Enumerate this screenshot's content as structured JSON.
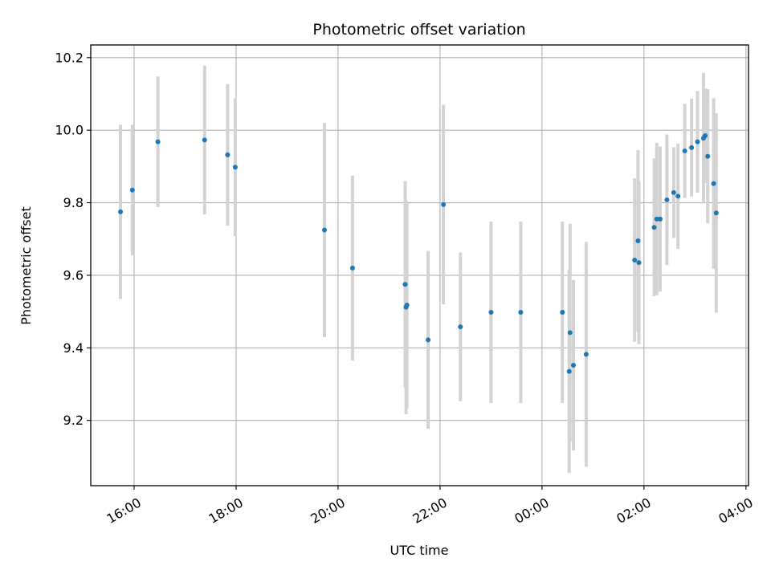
{
  "chart_data": {
    "type": "scatter",
    "title": "Photometric offset variation",
    "xlabel": "UTC time",
    "ylabel": "Photometric offset",
    "x_ticks": [
      "16:00",
      "18:00",
      "20:00",
      "22:00",
      "00:00",
      "02:00",
      "04:00"
    ],
    "y_ticks": [
      "9.2",
      "9.4",
      "9.6",
      "9.8",
      "10.0",
      "10.2"
    ],
    "xlim": [
      "15:09",
      "04:03"
    ],
    "ylim": [
      9.02,
      10.235
    ],
    "grid": true,
    "colors": {
      "marker": "#1f77b4",
      "errorbar": "#d3d3d3",
      "grid": "#b0b0b0"
    },
    "points": [
      {
        "t": "15:44",
        "y": 9.775,
        "err": 0.24
      },
      {
        "t": "15:58",
        "y": 9.835,
        "err": 0.18
      },
      {
        "t": "16:28",
        "y": 9.968,
        "err": 0.18
      },
      {
        "t": "17:23",
        "y": 9.973,
        "err": 0.205
      },
      {
        "t": "17:50",
        "y": 9.932,
        "err": 0.195
      },
      {
        "t": "17:59",
        "y": 9.898,
        "err": 0.19
      },
      {
        "t": "19:44",
        "y": 9.725,
        "err": 0.295
      },
      {
        "t": "20:17",
        "y": 9.62,
        "err": 0.255
      },
      {
        "t": "21:19",
        "y": 9.575,
        "err": 0.285
      },
      {
        "t": "21:20",
        "y": 9.512,
        "err": 0.295
      },
      {
        "t": "21:21",
        "y": 9.518,
        "err": 0.285
      },
      {
        "t": "21:46",
        "y": 9.422,
        "err": 0.245
      },
      {
        "t": "22:04",
        "y": 9.795,
        "err": 0.275
      },
      {
        "t": "22:24",
        "y": 9.458,
        "err": 0.205
      },
      {
        "t": "23:00",
        "y": 9.498,
        "err": 0.25
      },
      {
        "t": "23:35",
        "y": 9.498,
        "err": 0.25
      },
      {
        "t": "00:24",
        "y": 9.498,
        "err": 0.25
      },
      {
        "t": "00:32",
        "y": 9.335,
        "err": 0.28
      },
      {
        "t": "00:33",
        "y": 9.442,
        "err": 0.3
      },
      {
        "t": "00:37",
        "y": 9.352,
        "err": 0.235
      },
      {
        "t": "00:52",
        "y": 9.382,
        "err": 0.31
      },
      {
        "t": "01:49",
        "y": 9.642,
        "err": 0.225
      },
      {
        "t": "01:53",
        "y": 9.695,
        "err": 0.25
      },
      {
        "t": "01:54",
        "y": 9.635,
        "err": 0.225
      },
      {
        "t": "02:12",
        "y": 9.732,
        "err": 0.19
      },
      {
        "t": "02:15",
        "y": 9.755,
        "err": 0.21
      },
      {
        "t": "02:19",
        "y": 9.755,
        "err": 0.2
      },
      {
        "t": "02:27",
        "y": 9.808,
        "err": 0.18
      },
      {
        "t": "02:35",
        "y": 9.828,
        "err": 0.125
      },
      {
        "t": "02:40",
        "y": 9.818,
        "err": 0.145
      },
      {
        "t": "02:48",
        "y": 9.943,
        "err": 0.13
      },
      {
        "t": "02:56",
        "y": 9.952,
        "err": 0.135
      },
      {
        "t": "03:03",
        "y": 9.968,
        "err": 0.14
      },
      {
        "t": "03:10",
        "y": 9.978,
        "err": 0.18
      },
      {
        "t": "03:12",
        "y": 9.985,
        "err": 0.13
      },
      {
        "t": "03:15",
        "y": 9.928,
        "err": 0.185
      },
      {
        "t": "03:22",
        "y": 9.853,
        "err": 0.235
      },
      {
        "t": "03:25",
        "y": 9.772,
        "err": 0.275
      }
    ]
  }
}
